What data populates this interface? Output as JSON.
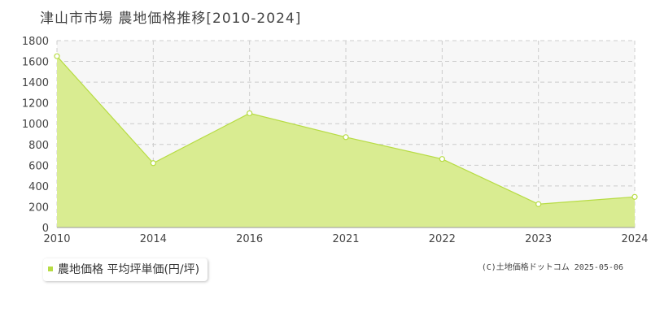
{
  "title": "津山市市場 農地価格推移[2010-2024]",
  "legend": {
    "label": "農地価格 平均坪単価(円/坪)"
  },
  "credit": "(C)土地価格ドットコム 2025-05-06",
  "colors": {
    "area_fill": "#d9ec91",
    "line": "#b7dc44",
    "plot_bg": "#f7f7f7",
    "grid": "#cccccc",
    "point_fill": "#ffffff"
  },
  "chart_data": {
    "type": "area",
    "title": "津山市市場 農地価格推移[2010-2024]",
    "xlabel": "",
    "ylabel": "",
    "categories": [
      "2010",
      "2014",
      "2016",
      "2021",
      "2022",
      "2023",
      "2024"
    ],
    "series": [
      {
        "name": "農地価格 平均坪単価(円/坪)",
        "values": [
          1650,
          620,
          1100,
          870,
          660,
          225,
          295
        ]
      }
    ],
    "ylim": [
      0,
      1800
    ],
    "yticks": [
      0,
      200,
      400,
      600,
      800,
      1000,
      1200,
      1400,
      1600,
      1800
    ],
    "grid": true,
    "legend_position": "bottom-left"
  }
}
